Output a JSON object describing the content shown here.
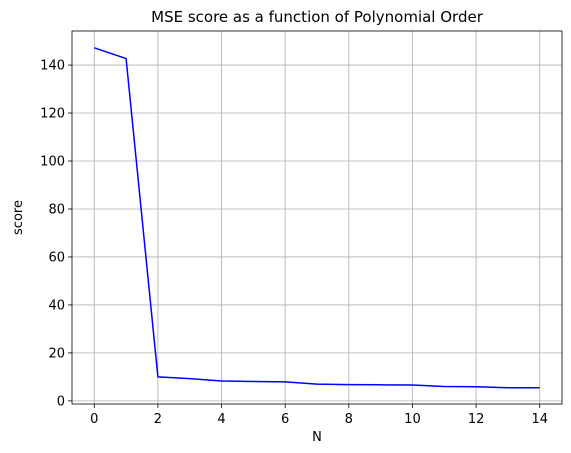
{
  "chart_data": {
    "type": "line",
    "title": "MSE score as a function of Polynomial Order",
    "xlabel": "N",
    "ylabel": "score",
    "xlim": [
      -0.7,
      14.7
    ],
    "ylim": [
      -1.3,
      154.2
    ],
    "xticks": [
      0,
      2,
      4,
      6,
      8,
      10,
      12,
      14
    ],
    "yticks": [
      0,
      20,
      40,
      60,
      80,
      100,
      120,
      140
    ],
    "grid": true,
    "series": [
      {
        "color": "#0000ff",
        "x": [
          0,
          1,
          2,
          3,
          4,
          5,
          6,
          7,
          8,
          9,
          10,
          11,
          12,
          13,
          14
        ],
        "y": [
          147.2,
          142.7,
          10.0,
          9.3,
          8.3,
          8.1,
          7.9,
          7.0,
          6.8,
          6.7,
          6.6,
          6.0,
          5.9,
          5.5,
          5.5
        ]
      }
    ]
  }
}
